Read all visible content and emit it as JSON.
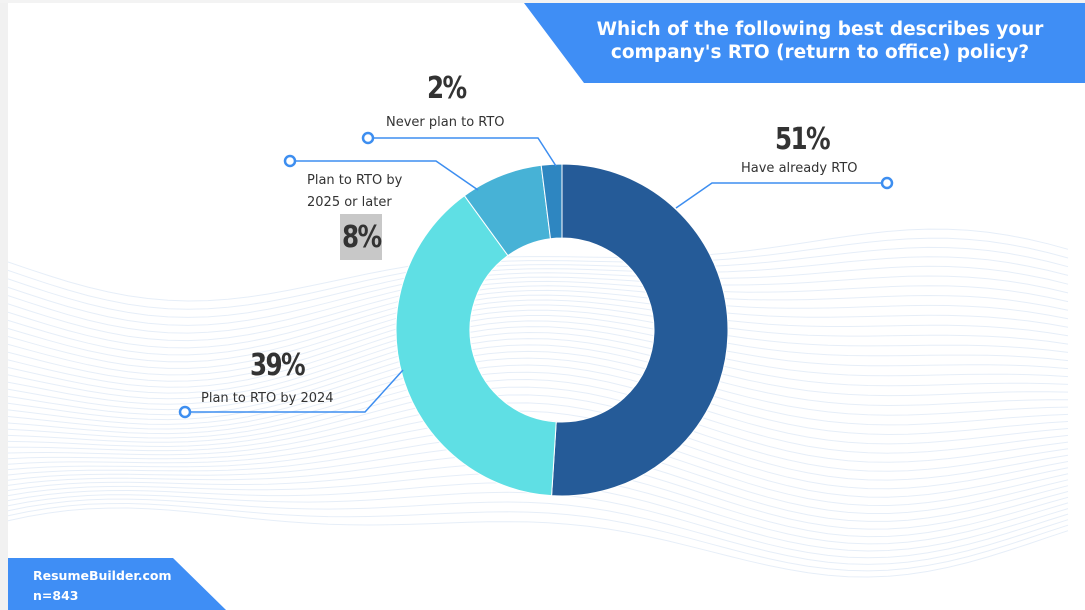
{
  "title": "Which of the following best describes your company's RTO (return to office) policy?",
  "footer": {
    "source": "ResumeBuilder.com",
    "sample": "n=843"
  },
  "colors": {
    "accent": "#3f8ef5",
    "leader": "#3d8ef0"
  },
  "chart_data": {
    "type": "pie",
    "subtype": "donut",
    "title": "Which of the following best describes your company's RTO (return to office) policy?",
    "slices": [
      {
        "label": "Have already RTO",
        "value": 51,
        "display": "51%",
        "color": "#255b98"
      },
      {
        "label": "Plan to RTO by 2024",
        "value": 39,
        "display": "39%",
        "color": "#5fdfe4"
      },
      {
        "label": "Plan to RTO by 2025 or later",
        "label_lines": [
          "Plan to RTO by",
          "2025 or later"
        ],
        "value": 8,
        "display": "8%",
        "color": "#47b2d6"
      },
      {
        "label": "Never plan to RTO",
        "value": 2,
        "display": "2%",
        "color": "#2e86c1"
      }
    ],
    "start_angle": "12 o'clock",
    "direction": "clockwise"
  }
}
